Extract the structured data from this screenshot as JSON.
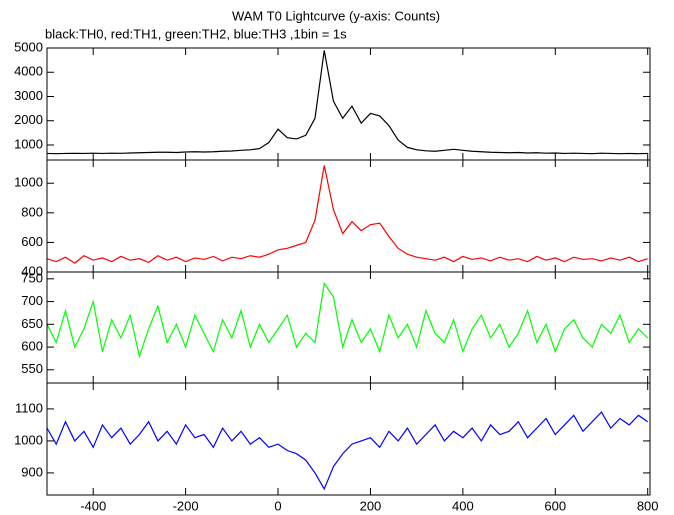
{
  "chart_data": [
    {
      "type": "line",
      "title": "WAM T0 Lightcurve (y-axis: Counts)",
      "subtitle": "black:TH0, red:TH1, green:TH2, blue:TH3 ,1bin = 1s",
      "color": "#000000",
      "x": [
        -500,
        -480,
        -460,
        -440,
        -420,
        -400,
        -380,
        -360,
        -340,
        -320,
        -300,
        -280,
        -260,
        -240,
        -220,
        -200,
        -180,
        -160,
        -140,
        -120,
        -100,
        -80,
        -60,
        -40,
        -20,
        0,
        20,
        40,
        60,
        80,
        100,
        120,
        140,
        160,
        180,
        200,
        220,
        240,
        260,
        280,
        300,
        320,
        340,
        360,
        380,
        400,
        420,
        440,
        460,
        480,
        500,
        520,
        540,
        560,
        580,
        600,
        620,
        640,
        660,
        680,
        700,
        720,
        740,
        760,
        780,
        800
      ],
      "values": [
        650,
        640,
        650,
        655,
        650,
        660,
        650,
        660,
        655,
        670,
        680,
        690,
        700,
        700,
        690,
        710,
        720,
        710,
        720,
        740,
        750,
        780,
        800,
        850,
        1100,
        1650,
        1300,
        1250,
        1400,
        2100,
        4900,
        2800,
        2100,
        2600,
        1900,
        2300,
        2200,
        1800,
        1200,
        900,
        800,
        760,
        740,
        780,
        820,
        780,
        740,
        720,
        700,
        690,
        680,
        690,
        670,
        680,
        660,
        670,
        650,
        660,
        650,
        640,
        660,
        650,
        640,
        650,
        640,
        650
      ],
      "xlim": [
        -500,
        805
      ],
      "xticks": [
        -400,
        -200,
        0,
        200,
        400,
        600,
        800
      ],
      "ylim": [
        380,
        5000
      ],
      "yticks": [
        1000,
        2000,
        3000,
        4000,
        5000
      ]
    },
    {
      "type": "line",
      "color": "#ff0000",
      "x": [
        -500,
        -480,
        -460,
        -440,
        -420,
        -400,
        -380,
        -360,
        -340,
        -320,
        -300,
        -280,
        -260,
        -240,
        -220,
        -200,
        -180,
        -160,
        -140,
        -120,
        -100,
        -80,
        -60,
        -40,
        -20,
        0,
        20,
        40,
        60,
        80,
        100,
        120,
        140,
        160,
        180,
        200,
        220,
        240,
        260,
        280,
        300,
        320,
        340,
        360,
        380,
        400,
        420,
        440,
        460,
        480,
        500,
        520,
        540,
        560,
        580,
        600,
        620,
        640,
        660,
        680,
        700,
        720,
        740,
        760,
        780,
        800
      ],
      "values": [
        490,
        470,
        500,
        460,
        510,
        480,
        495,
        470,
        505,
        480,
        490,
        465,
        510,
        480,
        500,
        470,
        495,
        485,
        505,
        475,
        500,
        490,
        510,
        500,
        520,
        550,
        560,
        580,
        600,
        750,
        1120,
        820,
        660,
        740,
        680,
        720,
        730,
        640,
        560,
        520,
        500,
        490,
        480,
        500,
        470,
        505,
        485,
        495,
        475,
        500,
        480,
        490,
        470,
        505,
        480,
        495,
        470,
        500,
        485,
        490,
        475,
        495,
        480,
        500,
        470,
        490
      ],
      "xlim": [
        -500,
        805
      ],
      "xticks": [
        -400,
        -200,
        0,
        200,
        400,
        600,
        800
      ],
      "ylim": [
        400,
        1157
      ],
      "yticks": [
        400,
        600,
        800,
        1000
      ]
    },
    {
      "type": "line",
      "color": "#00ff00",
      "x": [
        -500,
        -480,
        -460,
        -440,
        -420,
        -400,
        -380,
        -360,
        -340,
        -320,
        -300,
        -280,
        -260,
        -240,
        -220,
        -200,
        -180,
        -160,
        -140,
        -120,
        -100,
        -80,
        -60,
        -40,
        -20,
        0,
        20,
        40,
        60,
        80,
        100,
        120,
        140,
        160,
        180,
        200,
        220,
        240,
        260,
        280,
        300,
        320,
        340,
        360,
        380,
        400,
        420,
        440,
        460,
        480,
        500,
        520,
        540,
        560,
        580,
        600,
        620,
        640,
        660,
        680,
        700,
        720,
        740,
        760,
        780,
        800
      ],
      "values": [
        650,
        610,
        680,
        600,
        640,
        700,
        590,
        660,
        620,
        670,
        580,
        640,
        690,
        610,
        650,
        600,
        670,
        630,
        590,
        660,
        620,
        680,
        600,
        650,
        610,
        640,
        670,
        600,
        630,
        610,
        740,
        710,
        600,
        660,
        610,
        640,
        590,
        670,
        620,
        650,
        600,
        680,
        630,
        610,
        660,
        590,
        640,
        670,
        620,
        650,
        600,
        630,
        680,
        610,
        650,
        590,
        640,
        660,
        620,
        600,
        650,
        630,
        670,
        610,
        640,
        620
      ],
      "xlim": [
        -500,
        805
      ],
      "xticks": [
        -400,
        -200,
        0,
        200,
        400,
        600,
        800
      ],
      "ylim": [
        521,
        765
      ],
      "yticks": [
        550,
        600,
        650,
        700,
        750
      ]
    },
    {
      "type": "line",
      "color": "#0000ff",
      "x": [
        -500,
        -480,
        -460,
        -440,
        -420,
        -400,
        -380,
        -360,
        -340,
        -320,
        -300,
        -280,
        -260,
        -240,
        -220,
        -200,
        -180,
        -160,
        -140,
        -120,
        -100,
        -80,
        -60,
        -40,
        -20,
        0,
        20,
        40,
        60,
        80,
        100,
        120,
        140,
        160,
        180,
        200,
        220,
        240,
        260,
        280,
        300,
        320,
        340,
        360,
        380,
        400,
        420,
        440,
        460,
        480,
        500,
        520,
        540,
        560,
        580,
        600,
        620,
        640,
        660,
        680,
        700,
        720,
        740,
        760,
        780,
        800
      ],
      "values": [
        1040,
        990,
        1060,
        1000,
        1030,
        980,
        1050,
        1010,
        1040,
        990,
        1020,
        1060,
        1000,
        1030,
        990,
        1050,
        1010,
        1020,
        980,
        1040,
        1000,
        1030,
        990,
        1010,
        980,
        990,
        970,
        960,
        940,
        900,
        850,
        920,
        960,
        990,
        1000,
        1010,
        980,
        1030,
        1000,
        1040,
        990,
        1020,
        1050,
        1000,
        1030,
        1010,
        1040,
        1000,
        1050,
        1020,
        1030,
        1060,
        1010,
        1040,
        1070,
        1020,
        1050,
        1080,
        1030,
        1060,
        1090,
        1040,
        1070,
        1050,
        1080,
        1060
      ],
      "xlim": [
        -500,
        805
      ],
      "xticks": [
        -400,
        -200,
        0,
        200,
        400,
        600,
        800
      ],
      "ylim": [
        831,
        1181
      ],
      "yticks": [
        900,
        1000,
        1100
      ]
    }
  ]
}
